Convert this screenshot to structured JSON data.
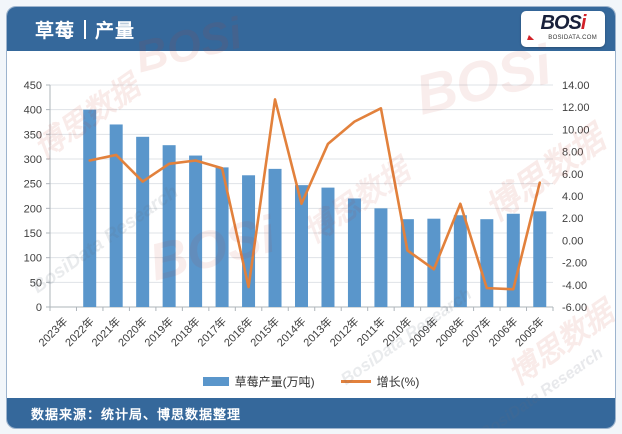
{
  "header": {
    "title_left": "草莓",
    "title_right": "产量",
    "logo": {
      "main": "BOS",
      "main_accent": "i",
      "domain": "BOSIDATA.COM"
    }
  },
  "footer": {
    "source_text": "数据来源：统计局、博思数据整理"
  },
  "watermarks": {
    "texts": [
      "BOSi",
      "博思数据",
      "BosiData Research"
    ]
  },
  "colors": {
    "header_bg": "#35689B",
    "bar": "#5A96CB",
    "line": "#E2813C",
    "grid": "#dfe3e7",
    "axis": "#aeb4ba"
  },
  "chart_data": {
    "type": "bar",
    "subtype": "combo-bar-line-dual-axis",
    "title": "草莓 | 产量",
    "categories": [
      "2023年",
      "2022年",
      "2021年",
      "2020年",
      "2019年",
      "2018年",
      "2017年",
      "2016年",
      "2015年",
      "2014年",
      "2013年",
      "2012年",
      "2011年",
      "2010年",
      "2009年",
      "2008年",
      "2007年",
      "2006年",
      "2005年"
    ],
    "series": [
      {
        "name": "草莓产量(万吨)",
        "type": "bar",
        "axis": "left",
        "color": "#5A96CB",
        "values": [
          null,
          400,
          370,
          345,
          328,
          307,
          283,
          267,
          280,
          247,
          242,
          220,
          200,
          178,
          179,
          186,
          178,
          189,
          194
        ]
      },
      {
        "name": "增长(%)",
        "type": "line",
        "axis": "right",
        "color": "#E2813C",
        "values": [
          null,
          7.2,
          7.7,
          5.3,
          6.9,
          7.2,
          6.5,
          -4.2,
          12.7,
          3.3,
          8.7,
          10.7,
          11.9,
          -0.9,
          -2.6,
          3.3,
          -4.3,
          -4.4,
          5.2
        ]
      }
    ],
    "left_axis": {
      "min": 0,
      "max": 450,
      "step": 50,
      "tick_values": [
        450,
        400,
        350,
        300,
        250,
        200,
        150,
        100,
        50,
        0
      ],
      "tick_labels": [
        "450",
        "400",
        "350",
        "300",
        "250",
        "200",
        "150",
        "100",
        "50",
        "0"
      ]
    },
    "right_axis": {
      "min": -6,
      "max": 14,
      "step": 2,
      "tick_values": [
        14,
        12,
        10,
        8,
        6,
        4,
        2,
        0,
        -2,
        -4,
        -6
      ],
      "tick_labels": [
        "14.00",
        "12.00",
        "10.00",
        "8.00",
        "6.00",
        "4.00",
        "2.00",
        "0.00",
        "-2.00",
        "-4.00",
        "-6.00"
      ]
    },
    "grid": true,
    "legend_position": "bottom",
    "x_label_rotation": -45
  }
}
